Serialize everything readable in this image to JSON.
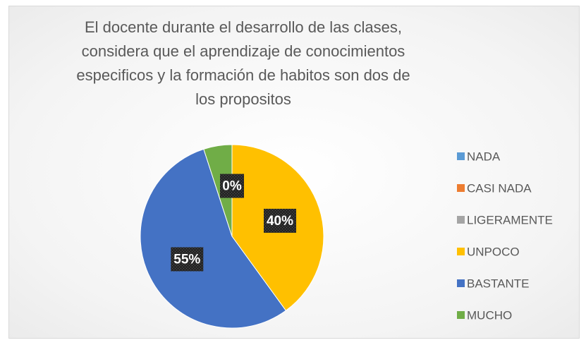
{
  "chart_data": {
    "type": "pie",
    "title": "El docente durante el desarrollo de las clases, considera que el aprendizaje de conocimientos especificos y la formación de habitos son dos de los propositos",
    "categories": [
      "NADA",
      "CASI NADA",
      "LIGERAMENTE",
      "UNPOCO",
      "BASTANTE",
      "MUCHO"
    ],
    "values": [
      0,
      0,
      0,
      40,
      55,
      5
    ],
    "value_labels": [
      null,
      null,
      "0%",
      "40%",
      "55%",
      null
    ],
    "colors": [
      "#5b9bd5",
      "#ed7d31",
      "#a5a5a5",
      "#ffc000",
      "#4472c4",
      "#70ad47"
    ],
    "legend": "right"
  }
}
